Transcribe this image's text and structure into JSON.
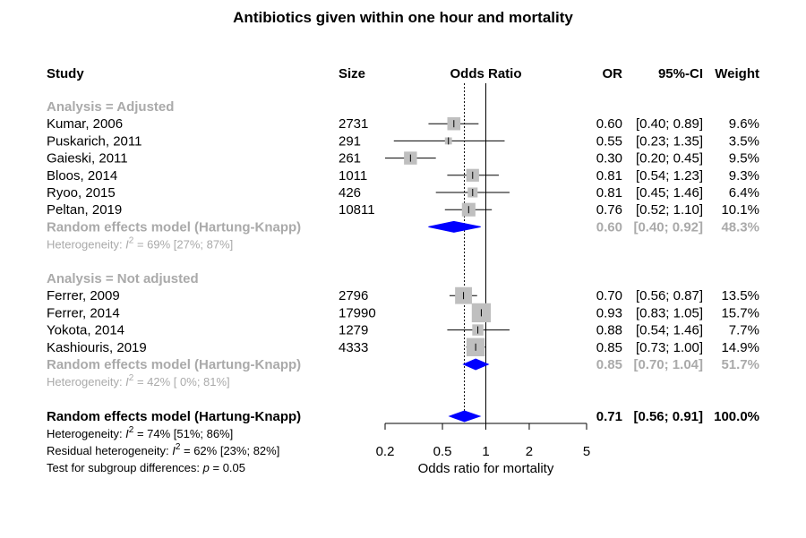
{
  "chart_data": {
    "type": "forest",
    "title": "Antibiotics given within one hour and mortality",
    "headers": {
      "study": "Study",
      "size": "Size",
      "plot": "Odds Ratio",
      "or": "OR",
      "ci": "95%-CI",
      "weight": "Weight"
    },
    "xlabel": "Odds ratio for mortality",
    "x_scale": "log",
    "xlim": [
      0.2,
      5
    ],
    "x_ticks": [
      0.2,
      0.5,
      1,
      2,
      5
    ],
    "x_tick_labels": [
      "0.2",
      "0.5",
      "1",
      "2",
      "5"
    ],
    "reference_line": 1,
    "overall_line": 0.71,
    "groups": [
      {
        "label": "Analysis = Adjusted",
        "studies": [
          {
            "name": "Kumar, 2006",
            "size": "2731",
            "or": 0.6,
            "lo": 0.4,
            "hi": 0.89,
            "or_text": "0.60",
            "ci_text": "[0.40; 0.89]",
            "weight_text": "9.6%",
            "weight": 9.6
          },
          {
            "name": "Puskarich, 2011",
            "size": "291",
            "or": 0.55,
            "lo": 0.23,
            "hi": 1.35,
            "or_text": "0.55",
            "ci_text": "[0.23; 1.35]",
            "weight_text": "3.5%",
            "weight": 3.5
          },
          {
            "name": "Gaieski, 2011",
            "size": "261",
            "or": 0.3,
            "lo": 0.2,
            "hi": 0.45,
            "or_text": "0.30",
            "ci_text": "[0.20; 0.45]",
            "weight_text": "9.5%",
            "weight": 9.5
          },
          {
            "name": "Bloos, 2014",
            "size": "1011",
            "or": 0.81,
            "lo": 0.54,
            "hi": 1.23,
            "or_text": "0.81",
            "ci_text": "[0.54; 1.23]",
            "weight_text": "9.3%",
            "weight": 9.3
          },
          {
            "name": "Ryoo, 2015",
            "size": "426",
            "or": 0.81,
            "lo": 0.45,
            "hi": 1.46,
            "or_text": "0.81",
            "ci_text": "[0.45; 1.46]",
            "weight_text": "6.4%",
            "weight": 6.4
          },
          {
            "name": "Peltan, 2019",
            "size": "10811",
            "or": 0.76,
            "lo": 0.52,
            "hi": 1.1,
            "or_text": "0.76",
            "ci_text": "[0.52; 1.10]",
            "weight_text": "10.1%",
            "weight": 10.1
          }
        ],
        "model": {
          "label": "Random effects model  (Hartung-Knapp)",
          "or": 0.6,
          "lo": 0.4,
          "hi": 0.92,
          "or_text": "0.60",
          "ci_text": "[0.40; 0.92]",
          "weight_text": "48.3%"
        },
        "heterogeneity": {
          "prefix": "Heterogeneity: ",
          "i": "I",
          "sup": "2",
          "rest": " = 69% [27%; 87%]"
        }
      },
      {
        "label": "Analysis = Not adjusted",
        "studies": [
          {
            "name": "Ferrer, 2009",
            "size": "2796",
            "or": 0.7,
            "lo": 0.56,
            "hi": 0.87,
            "or_text": "0.70",
            "ci_text": "[0.56; 0.87]",
            "weight_text": "13.5%",
            "weight": 13.5
          },
          {
            "name": "Ferrer, 2014",
            "size": "17990",
            "or": 0.93,
            "lo": 0.83,
            "hi": 1.05,
            "or_text": "0.93",
            "ci_text": "[0.83; 1.05]",
            "weight_text": "15.7%",
            "weight": 15.7
          },
          {
            "name": "Yokota, 2014",
            "size": "1279",
            "or": 0.88,
            "lo": 0.54,
            "hi": 1.46,
            "or_text": "0.88",
            "ci_text": "[0.54; 1.46]",
            "weight_text": "7.7%",
            "weight": 7.7
          },
          {
            "name": "Kashiouris, 2019",
            "size": "4333",
            "or": 0.85,
            "lo": 0.73,
            "hi": 1.0,
            "or_text": "0.85",
            "ci_text": "[0.73; 1.00]",
            "weight_text": "14.9%",
            "weight": 14.9
          }
        ],
        "model": {
          "label": "Random effects model  (Hartung-Knapp)",
          "or": 0.85,
          "lo": 0.7,
          "hi": 1.04,
          "or_text": "0.85",
          "ci_text": "[0.70; 1.04]",
          "weight_text": "51.7%"
        },
        "heterogeneity": {
          "prefix": "Heterogeneity: ",
          "i": "I",
          "sup": "2",
          "rest": " = 42% [ 0%; 81%]"
        }
      }
    ],
    "overall": {
      "label": "Random effects model  (Hartung-Knapp)",
      "or": 0.71,
      "lo": 0.56,
      "hi": 0.91,
      "or_text": "0.71",
      "ci_text": "[0.56; 0.91]",
      "weight_text": "100.0%"
    },
    "footer": [
      {
        "prefix": "Heterogeneity: ",
        "i": "I",
        "sup": "2",
        "rest": " = 74% [51%; 86%]"
      },
      {
        "prefix": "Residual heterogeneity: ",
        "i": "I",
        "sup": "2",
        "rest": " = 62% [23%; 82%]"
      },
      {
        "prefix": "Test for subgroup differences:  ",
        "i": "p",
        "sup": "",
        "rest": " = 0.05"
      }
    ],
    "colors": {
      "group_text": "#aaaaaa",
      "diamond": "#0000ff",
      "square": "#bfbfbf",
      "line": "#000000"
    }
  }
}
